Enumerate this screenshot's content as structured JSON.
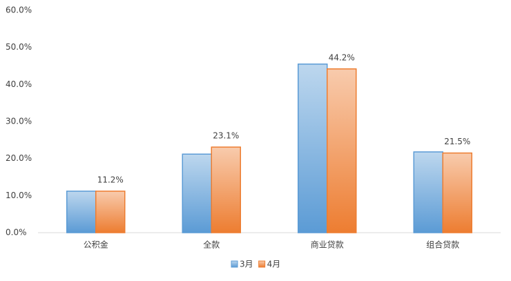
{
  "chart_data": {
    "type": "bar",
    "categories": [
      "公积金",
      "全款",
      "商业贷款",
      "组合贷款"
    ],
    "series": [
      {
        "name": "3月",
        "color": "#5b9bd5",
        "values": [
          11.2,
          21.2,
          45.5,
          21.8
        ]
      },
      {
        "name": "4月",
        "color": "#ed7d31",
        "values": [
          11.2,
          23.1,
          44.2,
          21.5
        ],
        "value_labels": [
          "11.2%",
          "23.1%",
          "44.2%",
          "21.5%"
        ]
      }
    ],
    "ylim": [
      0,
      60
    ],
    "yticks": [
      {
        "value": 0,
        "label": "0.0%"
      },
      {
        "value": 10,
        "label": "10.0%"
      },
      {
        "value": 20,
        "label": "20.0%"
      },
      {
        "value": 30,
        "label": "30.0%"
      },
      {
        "value": 40,
        "label": "40.0%"
      },
      {
        "value": 50,
        "label": "50.0%"
      },
      {
        "value": 60,
        "label": "60.0%"
      }
    ],
    "grid": false,
    "legend": "bottom"
  }
}
